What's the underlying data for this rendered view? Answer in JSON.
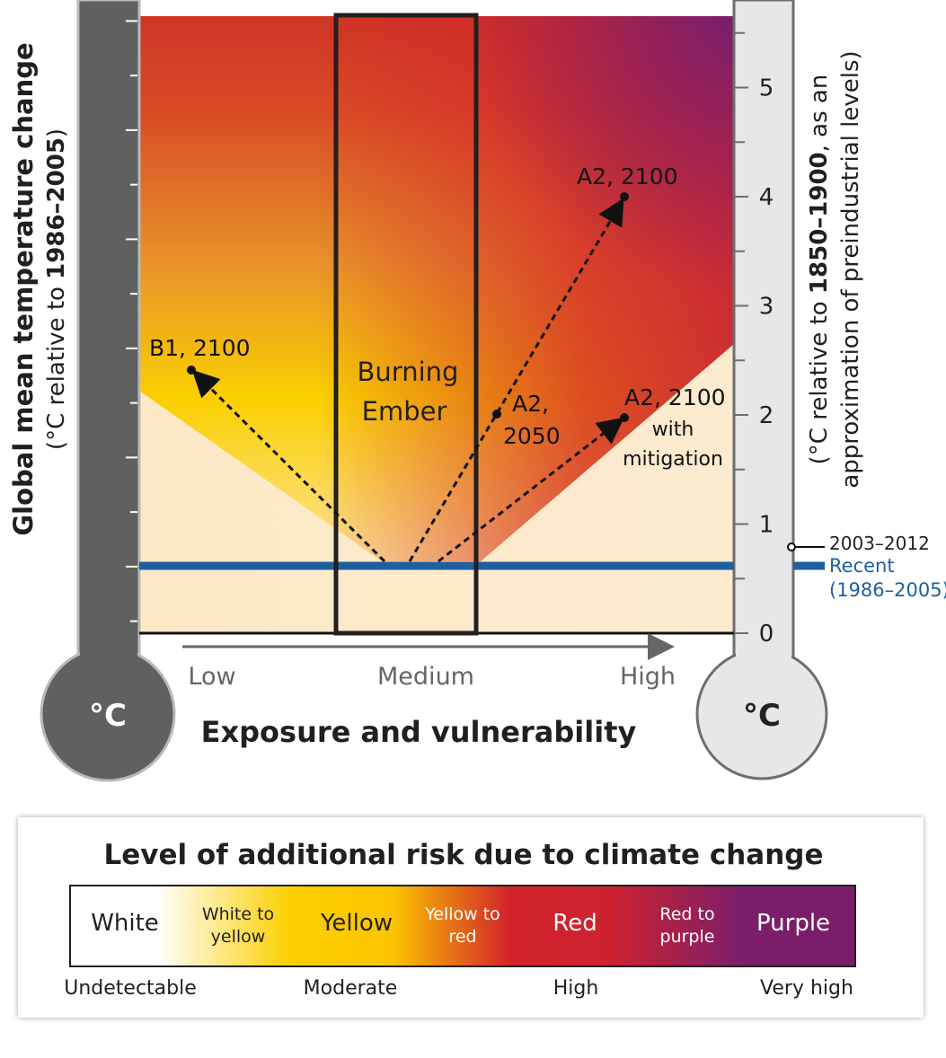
{
  "left_axis": {
    "title": "Global mean temperature change",
    "subtitle_pre": "(°C relative to ",
    "subtitle_bold": "1986–2005",
    "subtitle_post": ")",
    "bulb_label": "°C"
  },
  "right_axis": {
    "title_pre": "(°C relative to ",
    "title_bold": "1850–1900",
    "title_post": ", as an",
    "title_line2": "approximation of preindustrial levels)",
    "ticks": [
      "0",
      "1",
      "2",
      "3",
      "4",
      "5"
    ],
    "bulb_label": "°C"
  },
  "reference": {
    "period_label": "2003–2012",
    "recent_label": "Recent",
    "recent_period": "(1986–2005)",
    "recent_color": "#1f5fa0",
    "recent_value": 0.61,
    "period_value": 0.78
  },
  "x_axis": {
    "title": "Exposure and vulnerability",
    "low": "Low",
    "medium": "Medium",
    "high": "High"
  },
  "box_label": [
    "Burning",
    "Ember"
  ],
  "scenarios": [
    {
      "label": "B1, 2100"
    },
    {
      "label": "A2, 2100"
    },
    {
      "label_lines": [
        "A2,",
        "2050"
      ]
    },
    {
      "label": "A2, 2100",
      "note_lines": [
        "with",
        "mitigation"
      ]
    }
  ],
  "legend": {
    "title": "Level of additional risk due to climate change",
    "bands": [
      "White",
      "White to yellow",
      "Yellow",
      "Yellow to red",
      "Red",
      "Red to purple",
      "Purple"
    ],
    "band_lines": {
      "wy": [
        "White to",
        "yellow"
      ],
      "yr": [
        "Yellow to",
        "red"
      ],
      "rp": [
        "Red to",
        "purple"
      ]
    },
    "levels": [
      "Undetectable",
      "Moderate",
      "High",
      "Very high"
    ],
    "colors": {
      "white": "#ffffff",
      "yellow": "#fcd000",
      "red": "#d2232a",
      "purple": "#7a1e6c"
    }
  }
}
